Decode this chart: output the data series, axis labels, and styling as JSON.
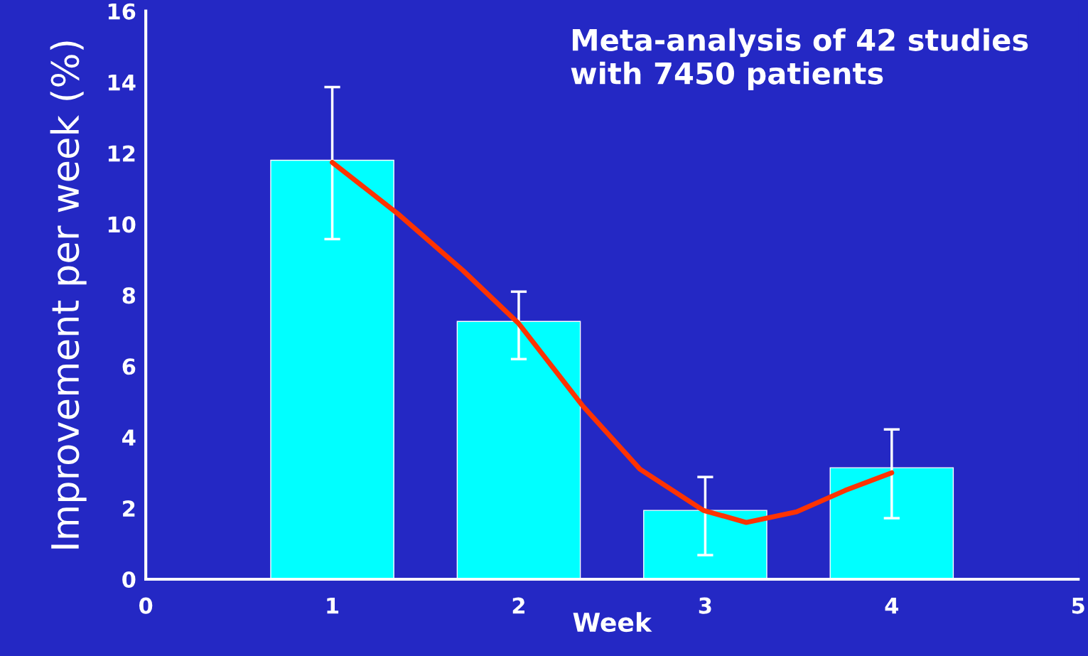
{
  "chart_data": {
    "type": "bar",
    "xlabel": "Week",
    "ylabel": "Improvement per week (%)",
    "annotations": [
      "Meta-analysis of 42 studies\nwith 7450 patients"
    ],
    "x": [
      1,
      2,
      3,
      4
    ],
    "xlim": [
      0,
      5
    ],
    "xticks": [
      0,
      1,
      2,
      3,
      4,
      5
    ],
    "ylim": [
      0,
      16
    ],
    "yticks": [
      0,
      2,
      4,
      6,
      8,
      10,
      12,
      14,
      16
    ],
    "grid": false,
    "legend": false,
    "series": [
      {
        "color": "#00ffff",
        "values": [
          11.8,
          7.26,
          1.94,
          3.14
        ],
        "errors": [
          [
            9.58,
            13.86
          ],
          [
            6.2,
            8.1
          ],
          [
            0.68,
            2.88
          ],
          [
            1.72,
            4.22
          ]
        ]
      },
      {
        "type": "line",
        "color": "#ff3300",
        "marker": "none",
        "line_style": "solid",
        "x": [
          1.0,
          1.35,
          1.7,
          2.0,
          2.34,
          2.65,
          2.99,
          3.22,
          3.49,
          3.75,
          4.0
        ],
        "values": [
          11.74,
          10.3,
          8.7,
          7.2,
          4.9,
          3.1,
          1.94,
          1.6,
          1.9,
          2.5,
          3.0
        ]
      }
    ]
  }
}
